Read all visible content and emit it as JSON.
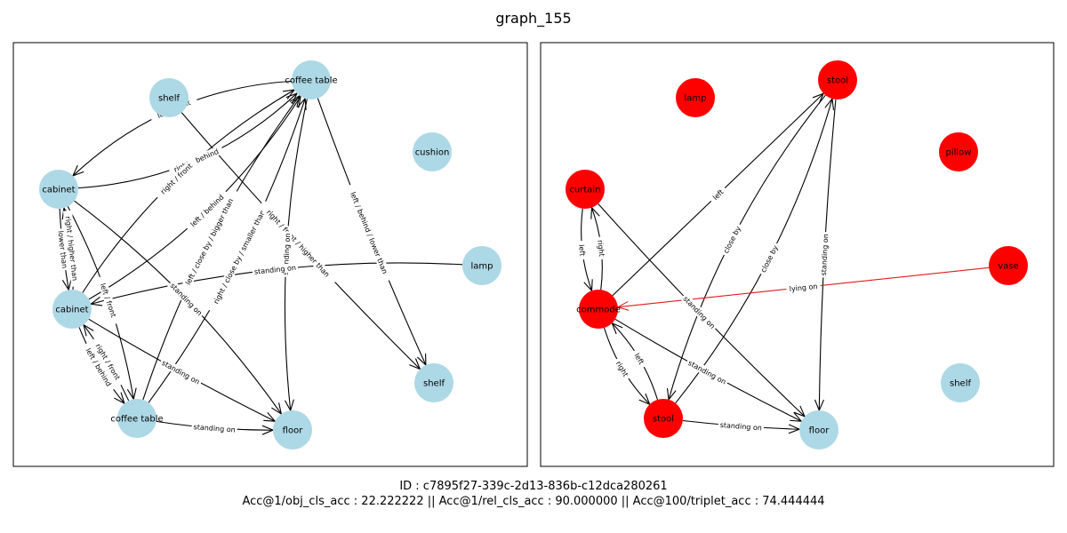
{
  "figure": {
    "title": "graph_155",
    "footer_id": "ID : c7895f27-339c-2d13-836b-c12dca280261",
    "footer_acc": "Acc@1/obj_cls_acc : 22.222222 || Acc@1/rel_cls_acc : 90.000000 || Acc@100/triplet_acc : 74.444444"
  },
  "colors": {
    "correct_node": "#add8e6",
    "wrong_node": "#ff0000",
    "edge": "#000000",
    "wrong_edge": "#e41a1c"
  },
  "panels": [
    {
      "id": "ground-truth",
      "nodes": [
        {
          "id": "shelf1",
          "label": "shelf",
          "status": "correct"
        },
        {
          "id": "ct1",
          "label": "coffee table",
          "status": "correct"
        },
        {
          "id": "cushion",
          "label": "cushion",
          "status": "correct"
        },
        {
          "id": "cab1",
          "label": "cabinet",
          "status": "correct"
        },
        {
          "id": "lamp",
          "label": "lamp",
          "status": "correct"
        },
        {
          "id": "cab2",
          "label": "cabinet",
          "status": "correct"
        },
        {
          "id": "shelf2",
          "label": "shelf",
          "status": "correct"
        },
        {
          "id": "ct2",
          "label": "coffee table",
          "status": "correct"
        },
        {
          "id": "floor",
          "label": "floor",
          "status": "correct"
        }
      ],
      "edges": [
        {
          "from": "ct1",
          "to": "cab1",
          "label": "left / front"
        },
        {
          "from": "cab1",
          "to": "ct1",
          "label": "right / behind"
        },
        {
          "from": "cab2",
          "to": "ct1",
          "label": "left / behind"
        },
        {
          "from": "cab2",
          "to": "ct1",
          "label": "right / front"
        },
        {
          "from": "ct2",
          "to": "ct1",
          "label": "right / close by / smaller than"
        },
        {
          "from": "ct2",
          "to": "ct1",
          "label": "left / close by / bigger than"
        },
        {
          "from": "shelf1",
          "to": "shelf2",
          "label": "right / front / higher than"
        },
        {
          "from": "ct1",
          "to": "shelf2",
          "label": "left / behind / lower than"
        },
        {
          "from": "ct1",
          "to": "floor",
          "label": "standing on"
        },
        {
          "from": "lamp",
          "to": "cab2",
          "label": "standing on"
        },
        {
          "from": "cab1",
          "to": "cab2",
          "label": "lower than"
        },
        {
          "from": "cab2",
          "to": "cab1",
          "label": "right / higher than"
        },
        {
          "from": "cab1",
          "to": "ct2",
          "label": "left / front"
        },
        {
          "from": "ct2",
          "to": "cab2",
          "label": "right / front"
        },
        {
          "from": "cab2",
          "to": "ct2",
          "label": "left / behind"
        },
        {
          "from": "cab1",
          "to": "floor",
          "label": "standing on"
        },
        {
          "from": "cab2",
          "to": "floor",
          "label": "standing on"
        },
        {
          "from": "ct2",
          "to": "floor",
          "label": "standing on"
        }
      ]
    },
    {
      "id": "prediction",
      "nodes": [
        {
          "id": "lamp",
          "label": "lamp",
          "status": "wrong"
        },
        {
          "id": "stool1",
          "label": "stool",
          "status": "wrong"
        },
        {
          "id": "pillow",
          "label": "pillow",
          "status": "wrong"
        },
        {
          "id": "curtain",
          "label": "curtain",
          "status": "wrong"
        },
        {
          "id": "vase",
          "label": "vase",
          "status": "wrong"
        },
        {
          "id": "commode",
          "label": "commode",
          "status": "wrong"
        },
        {
          "id": "shelf",
          "label": "shelf",
          "status": "correct"
        },
        {
          "id": "stool2",
          "label": "stool",
          "status": "wrong"
        },
        {
          "id": "floor",
          "label": "floor",
          "status": "correct"
        }
      ],
      "edges": [
        {
          "from": "commode",
          "to": "stool1",
          "label": "left"
        },
        {
          "from": "stool2",
          "to": "stool1",
          "label": "close by"
        },
        {
          "from": "stool1",
          "to": "stool2",
          "label": "close by"
        },
        {
          "from": "stool1",
          "to": "floor",
          "label": "standing on"
        },
        {
          "from": "vase",
          "to": "commode",
          "label": "lying on",
          "status": "wrong"
        },
        {
          "from": "curtain",
          "to": "commode",
          "label": "left"
        },
        {
          "from": "commode",
          "to": "curtain",
          "label": "right"
        },
        {
          "from": "curtain",
          "to": "floor",
          "label": "standing on"
        },
        {
          "from": "commode",
          "to": "floor",
          "label": "standing on"
        },
        {
          "from": "stool2",
          "to": "commode",
          "label": "left"
        },
        {
          "from": "commode",
          "to": "stool2",
          "label": "right"
        },
        {
          "from": "stool2",
          "to": "floor",
          "label": "standing on"
        }
      ]
    }
  ]
}
